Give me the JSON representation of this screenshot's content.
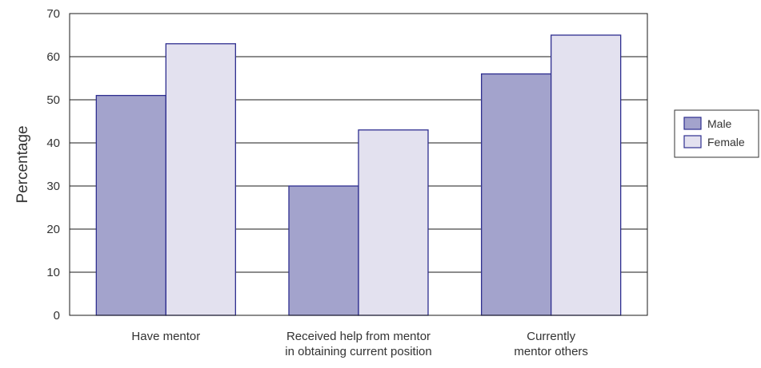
{
  "chart_data": {
    "type": "bar",
    "title": "",
    "xlabel": "",
    "ylabel": "Percentage",
    "ylim": [
      0,
      70
    ],
    "yticks": [
      0,
      10,
      20,
      30,
      40,
      50,
      60,
      70
    ],
    "grid": true,
    "legend_position": "right",
    "categories": [
      [
        "Have mentor"
      ],
      [
        "Received help from mentor",
        "in obtaining current position"
      ],
      [
        "Currently",
        "mentor others"
      ]
    ],
    "series": [
      {
        "name": "Male",
        "values": [
          51,
          30,
          56
        ],
        "color": "#a3a3cc"
      },
      {
        "name": "Female",
        "values": [
          63,
          43,
          65
        ],
        "color": "#e3e1ef"
      }
    ],
    "colors": {
      "bar_stroke": "#2e2e8f",
      "grid": "#1a1a1a",
      "text": "#333333"
    }
  }
}
